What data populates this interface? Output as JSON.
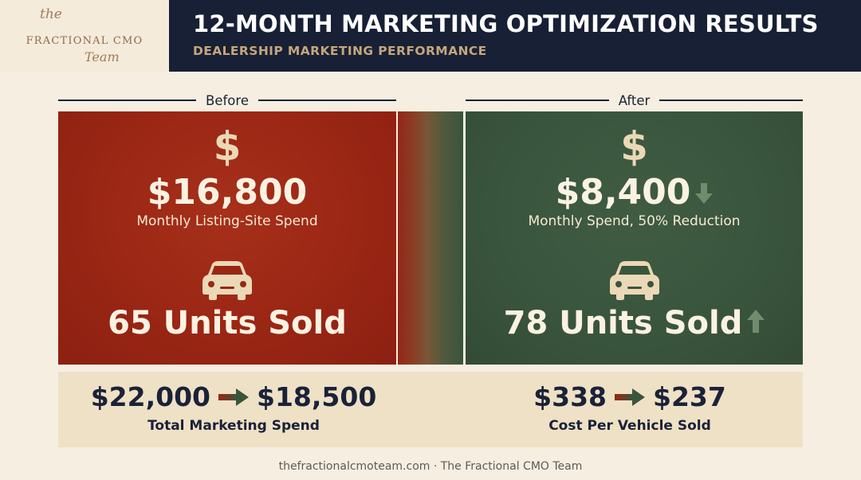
{
  "logo": {
    "the": "the",
    "main": "FRACTIONAL CMO",
    "team": "Team"
  },
  "header": {
    "title": "12-MONTH MARKETING OPTIMIZATION RESULTS",
    "subtitle": "DEALERSHIP MARKETING PERFORMANCE"
  },
  "before": {
    "label": "Before",
    "dollar_icon": "dollar-icon",
    "spend": "$16,800",
    "spend_label": "Monthly Listing-Site Spend",
    "car_icon": "car-icon",
    "units": "65 Units Sold"
  },
  "after": {
    "label": "After",
    "dollar_icon": "dollar-icon",
    "spend": "$8,400",
    "spend_trend_icon": "arrow-down-icon",
    "spend_label": "Monthly Spend, 50% Reduction",
    "car_icon": "car-icon",
    "units": "78 Units Sold",
    "units_trend_icon": "arrow-up-icon"
  },
  "metrics": [
    {
      "from": "$22,000",
      "to": "$18,500",
      "label": "Total Marketing Spend"
    },
    {
      "from": "$338",
      "to": "$237",
      "label": "Cost Per Vehicle Sold"
    }
  ],
  "footer": "thefractionalcmoteam.com · The Fractional CMO Team",
  "colors": {
    "navy": "#172034",
    "before_red": "#9a2614",
    "after_green": "#3a553d",
    "cream": "#f6efe1",
    "gold": "#c6a57f"
  }
}
